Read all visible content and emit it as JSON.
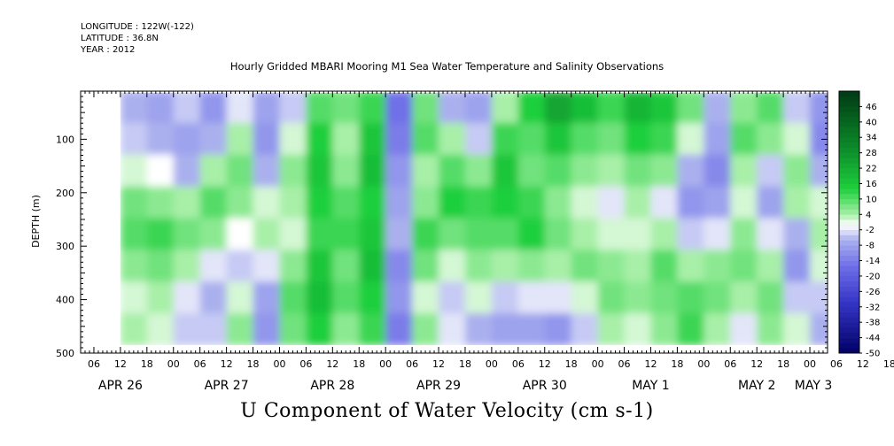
{
  "header": {
    "longitude": "LONGITUDE : 122W(-122)",
    "latitude": "LATITUDE : 36.8N",
    "year": "YEAR : 2012"
  },
  "title": "Hourly Gridded MBARI Mooring M1 Sea Water Temperature and Salinity Observations",
  "bottom_title": "U Component of Water Velocity (cm s-1)",
  "colors": {
    "negative_strong": "#000066",
    "negative": "#6f6fe8",
    "negative_light": "#aab0ee",
    "neutral": "#ffffff",
    "positive_light": "#a8efa8",
    "positive": "#1ecf3c",
    "positive_strong": "#003a14"
  },
  "chart_data": {
    "type": "heatmap",
    "title": "Hourly Gridded MBARI Mooring M1 Sea Water Temperature and Salinity Observations",
    "xlabel": "",
    "ylabel": "DEPTH (m)",
    "y_reversed": true,
    "ylim": [
      500,
      10
    ],
    "y_ticks": [
      100,
      200,
      300,
      400,
      500
    ],
    "x_range": [
      "2012-04-26T03:00",
      "2012-05-03T04:00"
    ],
    "x_hour_ticks": [
      "06",
      "12",
      "18",
      "00",
      "06",
      "12",
      "18",
      "00",
      "06",
      "12",
      "18",
      "00",
      "06",
      "12",
      "18",
      "00",
      "06",
      "12",
      "18",
      "00",
      "06",
      "12",
      "18",
      "00",
      "06",
      "12",
      "18",
      "00",
      "06",
      "12",
      "18",
      "00",
      "06"
    ],
    "x_day_labels": [
      "APR 26",
      "APR 27",
      "APR 28",
      "APR 29",
      "APR 30",
      "MAY  1",
      "MAY  2",
      "MAY  3"
    ],
    "colorbar": {
      "min": -50,
      "max": 52,
      "step": 2,
      "labels": [
        46,
        40,
        34,
        28,
        22,
        16,
        10,
        4,
        -2,
        -8,
        -14,
        -20,
        -26,
        -32,
        -38,
        -44,
        -50
      ]
    },
    "data_start": "2012-04-26T12:00",
    "seabed_depth_m": 485,
    "columns": [
      {
        "time": "2012-04-26T12:00",
        "u_profile": [
          -6,
          -4,
          2,
          8,
          10,
          6,
          2,
          4
        ]
      },
      {
        "time": "2012-04-26T18:00",
        "u_profile": [
          -8,
          -6,
          0,
          6,
          12,
          8,
          4,
          2
        ]
      },
      {
        "time": "2012-04-27T00:00",
        "u_profile": [
          -4,
          -8,
          -6,
          4,
          8,
          4,
          -2,
          -4
        ]
      },
      {
        "time": "2012-04-27T06:00",
        "u_profile": [
          -10,
          -6,
          4,
          10,
          6,
          -2,
          -6,
          -4
        ]
      },
      {
        "time": "2012-04-27T12:00",
        "u_profile": [
          -2,
          4,
          8,
          6,
          0,
          -4,
          2,
          6
        ]
      },
      {
        "time": "2012-04-27T18:00",
        "u_profile": [
          -8,
          -10,
          -6,
          2,
          4,
          -2,
          -8,
          -10
        ]
      },
      {
        "time": "2012-04-28T00:00",
        "u_profile": [
          -4,
          2,
          6,
          4,
          2,
          6,
          10,
          8
        ]
      },
      {
        "time": "2012-04-28T06:00",
        "u_profile": [
          10,
          14,
          16,
          14,
          12,
          16,
          18,
          14
        ]
      },
      {
        "time": "2012-04-28T12:00",
        "u_profile": [
          8,
          4,
          6,
          10,
          12,
          8,
          10,
          6
        ]
      },
      {
        "time": "2012-04-28T18:00",
        "u_profile": [
          12,
          16,
          18,
          14,
          16,
          18,
          14,
          12
        ]
      },
      {
        "time": "2012-04-29T00:00",
        "u_profile": [
          -16,
          -14,
          -10,
          -8,
          -6,
          -12,
          -10,
          -14
        ]
      },
      {
        "time": "2012-04-29T06:00",
        "u_profile": [
          8,
          10,
          4,
          6,
          12,
          8,
          2,
          6
        ]
      },
      {
        "time": "2012-04-29T12:00",
        "u_profile": [
          -6,
          4,
          10,
          14,
          8,
          2,
          -4,
          -2
        ]
      },
      {
        "time": "2012-04-29T18:00",
        "u_profile": [
          -8,
          -4,
          6,
          12,
          10,
          6,
          2,
          -6
        ]
      },
      {
        "time": "2012-04-30T00:00",
        "u_profile": [
          4,
          12,
          16,
          14,
          10,
          4,
          -4,
          -8
        ]
      },
      {
        "time": "2012-04-30T06:00",
        "u_profile": [
          14,
          10,
          8,
          12,
          14,
          6,
          -2,
          -8
        ]
      },
      {
        "time": "2012-04-30T12:00",
        "u_profile": [
          24,
          16,
          10,
          6,
          8,
          4,
          -2,
          -10
        ]
      },
      {
        "time": "2012-04-30T18:00",
        "u_profile": [
          18,
          10,
          6,
          2,
          4,
          8,
          2,
          -4
        ]
      },
      {
        "time": "2012-05-01T00:00",
        "u_profile": [
          12,
          8,
          4,
          -2,
          2,
          6,
          8,
          4
        ]
      },
      {
        "time": "2012-05-01T06:00",
        "u_profile": [
          20,
          14,
          8,
          4,
          2,
          4,
          6,
          2
        ]
      },
      {
        "time": "2012-05-01T12:00",
        "u_profile": [
          16,
          12,
          6,
          -2,
          4,
          10,
          8,
          6
        ]
      },
      {
        "time": "2012-05-01T18:00",
        "u_profile": [
          8,
          2,
          -6,
          -10,
          -4,
          4,
          10,
          12
        ]
      },
      {
        "time": "2012-05-02T00:00",
        "u_profile": [
          -6,
          -8,
          -12,
          -8,
          -2,
          6,
          8,
          4
        ]
      },
      {
        "time": "2012-05-02T06:00",
        "u_profile": [
          6,
          10,
          4,
          2,
          6,
          8,
          4,
          -2
        ]
      },
      {
        "time": "2012-05-02T12:00",
        "u_profile": [
          10,
          6,
          -4,
          -8,
          -2,
          4,
          8,
          6
        ]
      },
      {
        "time": "2012-05-02T18:00",
        "u_profile": [
          -4,
          2,
          6,
          4,
          -6,
          -10,
          -4,
          2
        ]
      },
      {
        "time": "2012-05-03T00:00",
        "u_profile": [
          -10,
          -12,
          -6,
          2,
          4,
          2,
          -4,
          -6
        ]
      }
    ]
  }
}
